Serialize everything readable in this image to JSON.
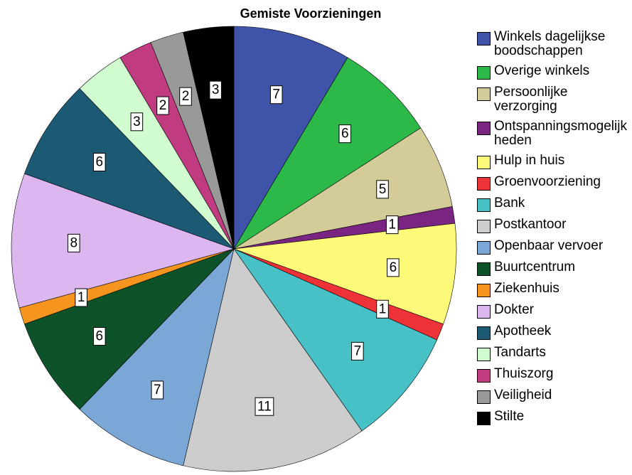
{
  "chart_data": {
    "type": "pie",
    "title": "Gemiste Voorzieningen",
    "categories": [
      "Winkels dagelijkse boodschappen",
      "Overige winkels",
      "Persoonlijke verzorging",
      "Ontspanningsmogelijkheden",
      "Hulp in huis",
      "Groenvoorziening",
      "Bank",
      "Postkantoor",
      "Openbaar vervoer",
      "Buurtcentrum",
      "Ziekenhuis",
      "Dokter",
      "Apotheek",
      "Tandarts",
      "Thuiszorg",
      "Veiligheid",
      "Stilte"
    ],
    "values": [
      7,
      6,
      5,
      1,
      6,
      1,
      7,
      11,
      7,
      6,
      1,
      8,
      6,
      3,
      2,
      2,
      3
    ],
    "colors": [
      "#3f54a8",
      "#2db84a",
      "#d4cc98",
      "#7a2582",
      "#fdfa7a",
      "#ee3338",
      "#47c1c6",
      "#cccccc",
      "#7ba7d6",
      "#0d5229",
      "#f5951f",
      "#dcb6ef",
      "#1c5a73",
      "#d1fcd0",
      "#c13b81",
      "#999999",
      "#000000"
    ]
  }
}
